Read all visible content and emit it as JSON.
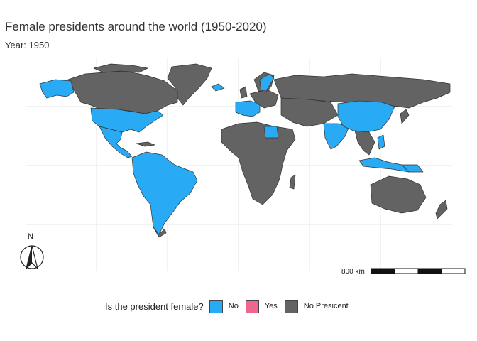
{
  "title": "Female presidents around the world (1950-2020)",
  "subtitle": "Year: 1950",
  "north_arrow": {
    "label": "N",
    "icon": "north-arrow-icon"
  },
  "scale_bar": {
    "label": "800 km"
  },
  "legend": {
    "title": "Is the president female?",
    "items": [
      {
        "label": "No",
        "color": "#29aaf4"
      },
      {
        "label": "Yes",
        "color": "#f0668f"
      },
      {
        "label": "No Presicent",
        "color": "#636363"
      }
    ]
  },
  "colors": {
    "no": "#29aaf4",
    "yes": "#f0668f",
    "no_president": "#636363",
    "border": "#333333",
    "grid": "#e6e6e6"
  }
}
